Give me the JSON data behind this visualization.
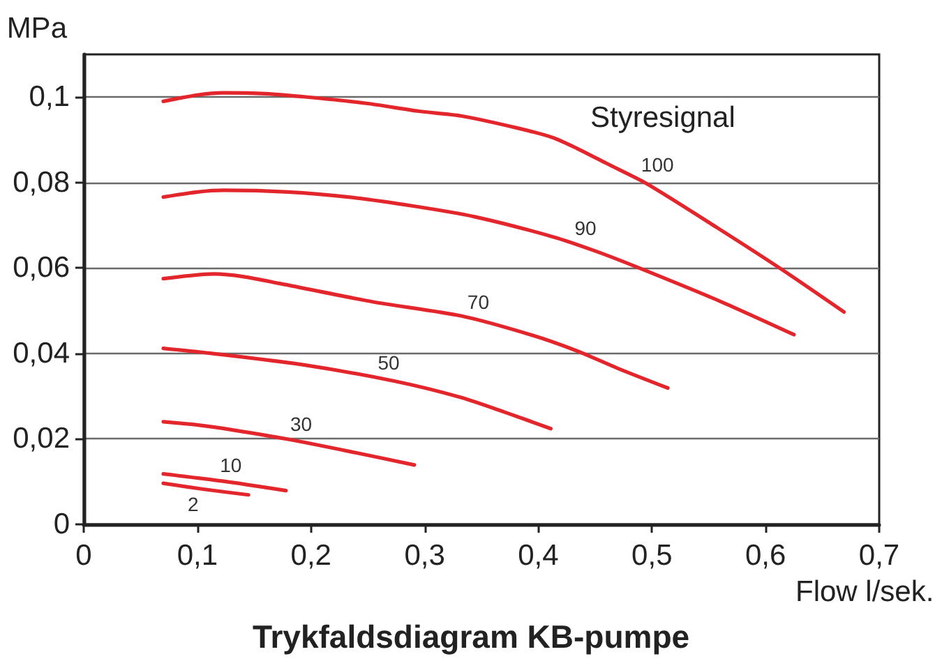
{
  "chart_data": {
    "type": "line",
    "title": "Trykfaldsdiagram KB-pumpe",
    "xlabel": "Flow l/sek.",
    "ylabel": "MPa",
    "annotations": [
      "Styresignal"
    ],
    "xlim": [
      0,
      0.7
    ],
    "xticks": [
      0,
      {
        "value": 0.1,
        "label": "0,1"
      },
      {
        "value": 0.2,
        "label": "0,2"
      },
      {
        "value": 0.3,
        "label": "0,3"
      },
      {
        "value": 0.4,
        "label": "0,4"
      },
      {
        "value": 0.5,
        "label": "0,5"
      },
      {
        "value": 0.6,
        "label": "0,6"
      },
      {
        "value": 0.7,
        "label": "0,7"
      }
    ],
    "ylim": [
      0,
      0.11
    ],
    "yticks": [
      0,
      {
        "value": 0.02,
        "label": "0,02"
      },
      {
        "value": 0.04,
        "label": "0,04"
      },
      {
        "value": 0.06,
        "label": "0,06"
      },
      {
        "value": 0.08,
        "label": "0,08"
      },
      {
        "value": 0.1,
        "label": "0,1"
      }
    ],
    "grid": "y",
    "marker": "none",
    "series": [
      {
        "name": "100",
        "color": "#e3262b",
        "x": [
          0.07,
          0.1,
          0.123,
          0.16,
          0.197,
          0.25,
          0.295,
          0.332,
          0.381,
          0.413,
          0.434,
          0.46,
          0.495,
          0.557,
          0.614,
          0.669
        ],
        "values": [
          0.099,
          0.1005,
          0.101,
          0.1008,
          0.1,
          0.0985,
          0.0967,
          0.0956,
          0.0928,
          0.0905,
          0.088,
          0.0845,
          0.0798,
          0.0695,
          0.0597,
          0.0497
        ]
      },
      {
        "name": "90",
        "color": "#e3262b",
        "x": [
          0.07,
          0.1,
          0.123,
          0.18,
          0.233,
          0.29,
          0.344,
          0.413,
          0.45,
          0.487,
          0.561,
          0.625
        ],
        "values": [
          0.0766,
          0.0778,
          0.0782,
          0.0778,
          0.0766,
          0.0745,
          0.072,
          0.0673,
          0.064,
          0.0602,
          0.0521,
          0.0444
        ]
      },
      {
        "name": "70",
        "color": "#e3262b",
        "x": [
          0.07,
          0.115,
          0.14,
          0.172,
          0.254,
          0.332,
          0.393,
          0.434,
          0.47,
          0.514
        ],
        "values": [
          0.0575,
          0.0586,
          0.058,
          0.0564,
          0.0521,
          0.0488,
          0.0444,
          0.0406,
          0.0365,
          0.0319
        ]
      },
      {
        "name": "50",
        "color": "#e3262b",
        "x": [
          0.07,
          0.11,
          0.192,
          0.274,
          0.332,
          0.37,
          0.411
        ],
        "values": [
          0.0412,
          0.0401,
          0.0374,
          0.0335,
          0.0297,
          0.0263,
          0.0224
        ]
      },
      {
        "name": "30",
        "color": "#e3262b",
        "x": [
          0.07,
          0.102,
          0.131,
          0.18,
          0.235,
          0.291
        ],
        "values": [
          0.024,
          0.0232,
          0.0221,
          0.0199,
          0.017,
          0.0139
        ]
      },
      {
        "name": "10",
        "color": "#e3262b",
        "x": [
          0.07,
          0.123,
          0.178
        ],
        "values": [
          0.0118,
          0.0101,
          0.0079
        ]
      },
      {
        "name": "2",
        "color": "#e3262b",
        "x": [
          0.07,
          0.106,
          0.145
        ],
        "values": [
          0.0096,
          0.0082,
          0.0069
        ]
      }
    ]
  }
}
